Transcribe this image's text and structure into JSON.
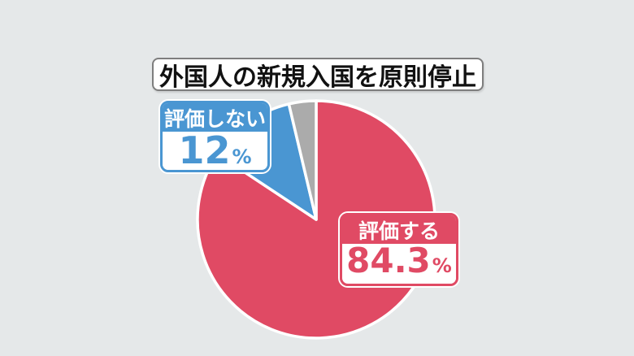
{
  "title": "外国人の新規入国を原則停止",
  "colors": {
    "background": "#e5e8e9",
    "red": "#e04a64",
    "blue": "#4a96d2",
    "gray": "#ababab",
    "slice_stroke": "#ffffff",
    "title_border": "#7e7e7e",
    "title_text": "#111111"
  },
  "labels": {
    "disapprove": {
      "name": "評価しない",
      "value": "12",
      "unit": "%"
    },
    "approve": {
      "name": "評価する",
      "value": "84.3",
      "unit": "%"
    }
  },
  "chart_data": {
    "type": "pie",
    "title": "外国人の新規入国を原則停止",
    "slices": [
      {
        "id": "approve",
        "label": "評価する",
        "value": 84.3,
        "color": "#e04a64"
      },
      {
        "id": "disapprove",
        "label": "評価しない",
        "value": 12,
        "color": "#4a96d2"
      },
      {
        "id": "other",
        "label": "",
        "value": 3.7,
        "color": "#ababab"
      }
    ],
    "start_angle_deg": 0,
    "direction": "clockwise",
    "stroke_color": "#ffffff",
    "legend": "none"
  }
}
